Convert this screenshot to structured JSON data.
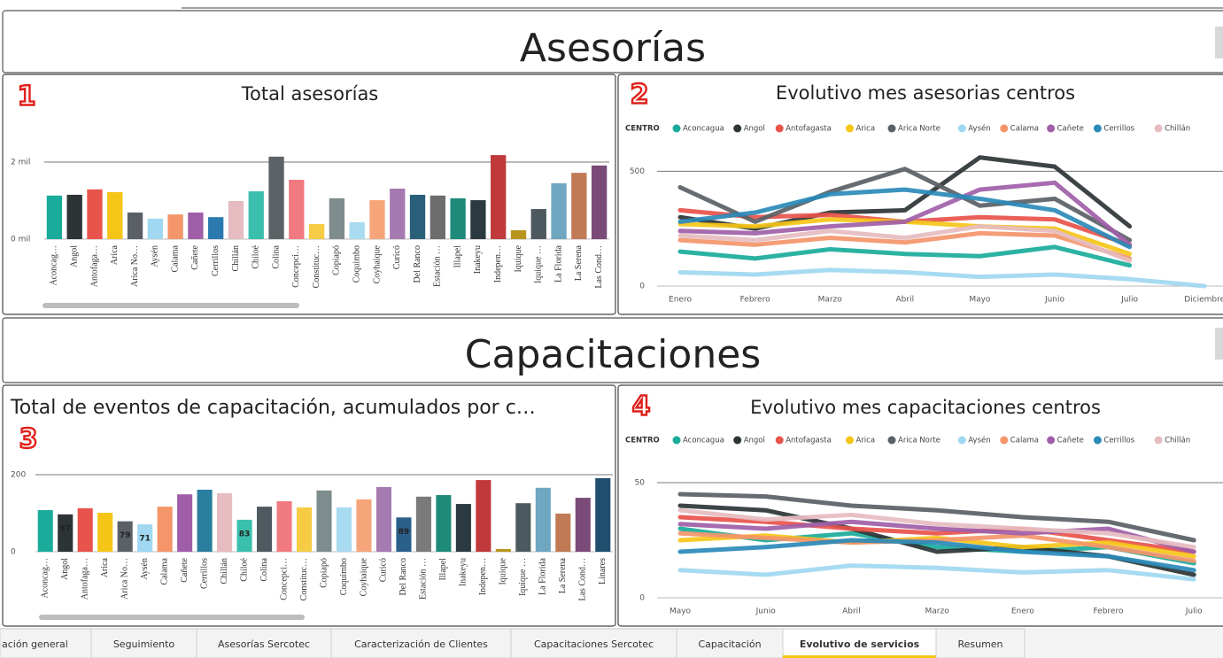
{
  "sections": [
    {
      "title": "Asesorías"
    },
    {
      "title": "Capacitaciones"
    }
  ],
  "badges": [
    "1",
    "2",
    "3",
    "4"
  ],
  "chart_data": [
    {
      "type": "bar",
      "title": "Total asesorías",
      "categories": [
        "Aconcag…",
        "Angol",
        "Antofaga…",
        "Arica",
        "Arica No…",
        "Aysén",
        "Calama",
        "Cañete",
        "Cerrillos",
        "Chillán",
        "Chiloé",
        "Colina",
        "Concepci…",
        "Constituc…",
        "Copiapó",
        "Coquimbo",
        "Coyhaique",
        "Curicó",
        "Del Ranco",
        "Estación …",
        "Illapel",
        "Inakeyu",
        "Indepen…",
        "Iquique",
        "Iquique …",
        "La Florida",
        "La Serena",
        "Las Cond…"
      ],
      "values": [
        1130,
        1150,
        1290,
        1220,
        690,
        530,
        640,
        690,
        570,
        990,
        1240,
        2140,
        1540,
        390,
        1060,
        440,
        1010,
        1310,
        1150,
        1130,
        1060,
        1010,
        2180,
        230,
        780,
        1450,
        1720,
        1910
      ],
      "colors": [
        "#1aab9b",
        "#2d3436",
        "#e8534b",
        "#f5c518",
        "#5a6066",
        "#9fd8f0",
        "#f4956a",
        "#a05ea8",
        "#2a7ab0",
        "#e6bcc0",
        "#3bbfad",
        "#5b6366",
        "#f07a80",
        "#f5cc44",
        "#7f8c8d",
        "#a8daf0",
        "#f6a57a",
        "#a57ab0",
        "#2a5f7a",
        "#6d6d6d",
        "#1e8a7a",
        "#2b3a40",
        "#c0393b",
        "#b8961e",
        "#4c5a60",
        "#6fa6c0",
        "#c07a56",
        "#7a4a78"
      ],
      "ylim": [
        0,
        2700
      ],
      "yticks": [
        {
          "value": 0,
          "label": "0 mil"
        },
        {
          "value": 2000,
          "label": "2 mil"
        }
      ],
      "grid": true
    },
    {
      "type": "line",
      "title": "Evolutivo mes asesorias centros",
      "legend_title": "CENTRO",
      "categories": [
        "Enero",
        "Febrero",
        "Marzo",
        "Abril",
        "Mayo",
        "Junio",
        "Julio",
        "Diciembre"
      ],
      "series": [
        {
          "name": "Aconcagua",
          "color": "#1aab9b",
          "values": [
            150,
            120,
            160,
            140,
            130,
            170,
            90,
            null
          ]
        },
        {
          "name": "Angol",
          "color": "#2d3436",
          "values": [
            300,
            250,
            320,
            330,
            560,
            520,
            260,
            null
          ]
        },
        {
          "name": "Antofagasta",
          "color": "#e8534b",
          "values": [
            330,
            300,
            310,
            280,
            300,
            290,
            180,
            null
          ]
        },
        {
          "name": "Arica",
          "color": "#f5c518",
          "values": [
            270,
            260,
            290,
            280,
            260,
            250,
            140,
            null
          ]
        },
        {
          "name": "Arica Norte",
          "color": "#5a6066",
          "values": [
            430,
            280,
            410,
            510,
            350,
            380,
            200,
            null
          ]
        },
        {
          "name": "Aysén",
          "color": "#9fd8f0",
          "values": [
            60,
            50,
            70,
            60,
            40,
            50,
            30,
            0
          ]
        },
        {
          "name": "Calama",
          "color": "#f4956a",
          "values": [
            200,
            180,
            210,
            190,
            230,
            220,
            120,
            null
          ]
        },
        {
          "name": "Cañete",
          "color": "#a05ea8",
          "values": [
            240,
            230,
            260,
            280,
            420,
            450,
            180,
            null
          ]
        },
        {
          "name": "Cerrillos",
          "color": "#2a8ab8",
          "values": [
            280,
            320,
            400,
            420,
            380,
            330,
            170,
            null
          ]
        },
        {
          "name": "Chillán",
          "color": "#e6bcc0",
          "values": [
            220,
            200,
            240,
            210,
            260,
            240,
            110,
            null
          ]
        }
      ],
      "ylim": [
        0,
        590
      ],
      "yticks": [
        0,
        500
      ],
      "grid": true
    },
    {
      "type": "bar",
      "title": "Total de eventos de capacitación, acumulados por c…",
      "categories": [
        "Aconcag…",
        "Angol",
        "Antofaga…",
        "Arica",
        "Arica No…",
        "Aysén",
        "Calama",
        "Cañete",
        "Cerrillos",
        "Chillán",
        "Chiloé",
        "Colina",
        "Concepci…",
        "Constituc…",
        "Copiapó",
        "Coquimbo",
        "Coyhaique",
        "Curicó",
        "Del Ranco",
        "Estación …",
        "Illapel",
        "Inakeyu",
        "Indepen…",
        "Iquique",
        "Iquique …",
        "La Florida",
        "La Serena",
        "Las Cond…",
        "Linares"
      ],
      "values": [
        108,
        97,
        113,
        101,
        79,
        71,
        117,
        149,
        161,
        152,
        83,
        117,
        131,
        115,
        159,
        115,
        136,
        168,
        89,
        143,
        147,
        124,
        186,
        7,
        126,
        166,
        99,
        140,
        191
      ],
      "value_labels": [
        null,
        "97",
        null,
        null,
        "79",
        "71",
        null,
        null,
        null,
        null,
        "83",
        null,
        null,
        null,
        null,
        null,
        null,
        null,
        "89",
        null,
        null,
        null,
        null,
        null,
        null,
        null,
        null,
        null,
        null
      ],
      "colors": [
        "#1aab9b",
        "#2d3436",
        "#e8534b",
        "#f5c518",
        "#5a6066",
        "#9fd8f0",
        "#f4956a",
        "#a05ea8",
        "#2a7f9e",
        "#e6bcc0",
        "#3bbfad",
        "#4f5a60",
        "#f07a80",
        "#f5cc44",
        "#7f8c8d",
        "#a8daf0",
        "#f6a57a",
        "#a57ab0",
        "#2a5f8a",
        "#7a7a7a",
        "#1e8a7a",
        "#2b3a40",
        "#c0393b",
        "#b8961e",
        "#4c5a60",
        "#6fa6c0",
        "#c07a56",
        "#7a4a78",
        "#1f4e6e"
      ],
      "ylim": [
        0,
        240
      ],
      "yticks": [
        0,
        200
      ],
      "grid": true
    },
    {
      "type": "line",
      "title": "Evolutivo mes capacitaciones centros",
      "legend_title": "CENTRO",
      "categories": [
        "Mayo",
        "Junio",
        "Abril",
        "Marzo",
        "Enero",
        "Febrero",
        "Julio"
      ],
      "series": [
        {
          "name": "Aconcagua",
          "color": "#1aab9b",
          "values": [
            30,
            25,
            28,
            22,
            20,
            22,
            15
          ]
        },
        {
          "name": "Angol",
          "color": "#2d3436",
          "values": [
            40,
            38,
            30,
            20,
            22,
            18,
            10
          ]
        },
        {
          "name": "Antofagasta",
          "color": "#e8534b",
          "values": [
            35,
            33,
            30,
            28,
            30,
            25,
            20
          ]
        },
        {
          "name": "Arica",
          "color": "#f5c518",
          "values": [
            25,
            27,
            24,
            26,
            22,
            24,
            18
          ]
        },
        {
          "name": "Arica Norte",
          "color": "#5a6066",
          "values": [
            45,
            44,
            40,
            38,
            35,
            33,
            25
          ]
        },
        {
          "name": "Aysén",
          "color": "#9fd8f0",
          "values": [
            12,
            10,
            14,
            13,
            11,
            12,
            8
          ]
        },
        {
          "name": "Calama",
          "color": "#f4956a",
          "values": [
            28,
            26,
            24,
            25,
            27,
            22,
            16
          ]
        },
        {
          "name": "Cañete",
          "color": "#a05ea8",
          "values": [
            32,
            30,
            33,
            30,
            28,
            30,
            20
          ]
        },
        {
          "name": "Cerrillos",
          "color": "#2a8ab8",
          "values": [
            20,
            22,
            25,
            24,
            20,
            18,
            12
          ]
        },
        {
          "name": "Chillán",
          "color": "#e6bcc0",
          "values": [
            38,
            34,
            36,
            32,
            30,
            28,
            22
          ]
        }
      ],
      "ylim": [
        0,
        60
      ],
      "yticks": [
        0,
        50
      ],
      "grid": true
    }
  ],
  "tabs": {
    "items": [
      "ación general",
      "Seguimiento",
      "Asesorías Sercotec",
      "Caracterización de Clientes",
      "Capacitaciones Sercotec",
      "Capacitación",
      "Evolutivo de servicios",
      "Resumen"
    ],
    "active": 6
  }
}
